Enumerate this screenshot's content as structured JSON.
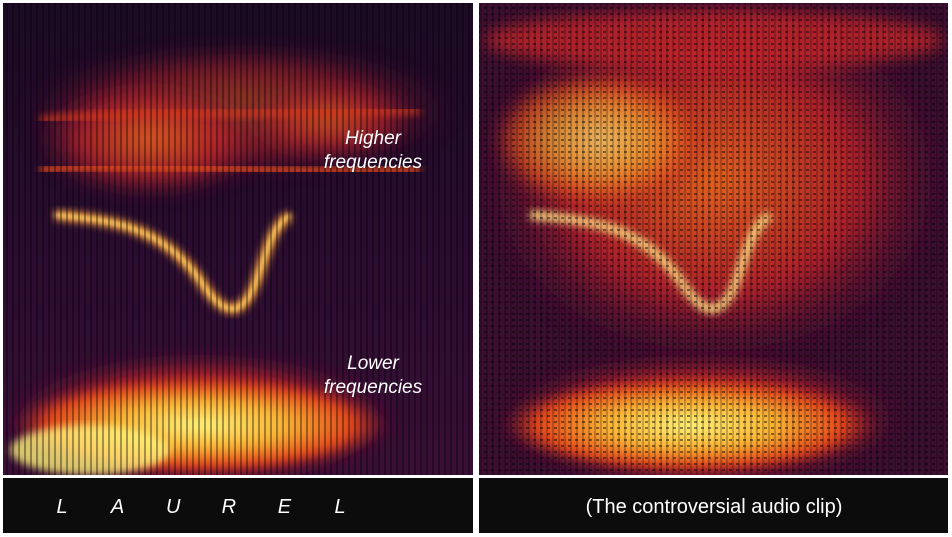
{
  "left": {
    "annotations": [
      {
        "lines": [
          "Higher",
          "frequencies"
        ]
      },
      {
        "lines": [
          "Lower",
          "frequencies"
        ]
      }
    ],
    "letters": [
      "L",
      "A",
      "U",
      "R",
      "E",
      "L"
    ]
  },
  "right": {
    "caption": "(The controversial audio clip)"
  }
}
